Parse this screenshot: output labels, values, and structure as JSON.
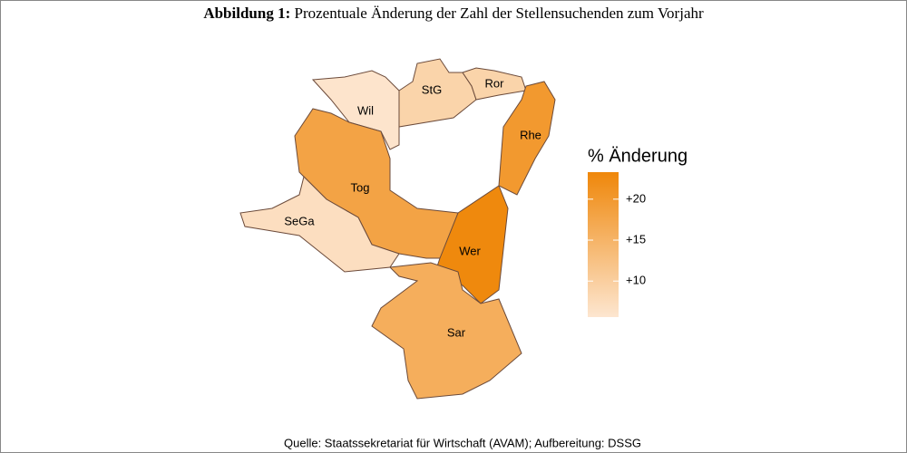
{
  "chart_data": {
    "type": "choropleth",
    "figure_label": "Abbildung 1:",
    "title": "Prozentuale Änderung der Zahl der Stellensuchenden zum Vorjahr",
    "regions": [
      {
        "name": "Wil",
        "value": 6
      },
      {
        "name": "StG",
        "value": 9
      },
      {
        "name": "Ror",
        "value": 9
      },
      {
        "name": "Rhe",
        "value": 20
      },
      {
        "name": "Tog",
        "value": 18
      },
      {
        "name": "SeGa",
        "value": 7
      },
      {
        "name": "Wer",
        "value": 23
      },
      {
        "name": "Sar",
        "value": 16
      }
    ],
    "legend_title": "% Änderung",
    "colorbar": {
      "lim": [
        5.6,
        23.3
      ],
      "ticks": [
        {
          "value": 20,
          "label": "+20"
        },
        {
          "value": 15,
          "label": "+15"
        },
        {
          "value": 10,
          "label": "+10"
        }
      ],
      "colors": [
        "#fde6d0",
        "#ef870a"
      ]
    },
    "source": "Quelle: Staatssekretariat für Wirtschaft (AVAM); Aufbereitung: DSSG"
  }
}
